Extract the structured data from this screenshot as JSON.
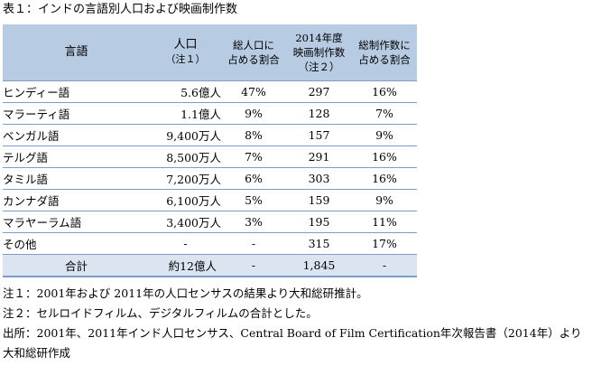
{
  "title": "表１：インドの言語別人口および映画制作数",
  "table": {
    "headers": {
      "language": "言語",
      "population_line1": "人口",
      "population_line2": "（注１）",
      "pop_share_line1": "総人口に",
      "pop_share_line2": "占める割合",
      "films_line1": "2014年度",
      "films_line2": "映画制作数",
      "films_line3": "（注２）",
      "film_share_line1": "総制作数に",
      "film_share_line2": "占める割合"
    },
    "rows": [
      {
        "language": "ヒンディー語",
        "population": "5.6億人",
        "pop_share": "47%",
        "films": "297",
        "film_share": "16%"
      },
      {
        "language": "マラーティ語",
        "population": "1.1億人",
        "pop_share": "9%",
        "films": "128",
        "film_share": "7%"
      },
      {
        "language": "ベンガル語",
        "population": "9,400万人",
        "pop_share": "8%",
        "films": "157",
        "film_share": "9%"
      },
      {
        "language": "テルグ語",
        "population": "8,500万人",
        "pop_share": "7%",
        "films": "291",
        "film_share": "16%"
      },
      {
        "language": "タミル語",
        "population": "7,200万人",
        "pop_share": "6%",
        "films": "303",
        "film_share": "16%"
      },
      {
        "language": "カンナダ語",
        "population": "6,100万人",
        "pop_share": "5%",
        "films": "159",
        "film_share": "9%"
      },
      {
        "language": "マラヤーラム語",
        "population": "3,400万人",
        "pop_share": "3%",
        "films": "195",
        "film_share": "11%"
      },
      {
        "language": "その他",
        "population": "-",
        "pop_share": "-",
        "films": "315",
        "film_share": "17%"
      }
    ],
    "total": {
      "language": "合計",
      "population": "約12億人",
      "pop_share": "-",
      "films": "1,845",
      "film_share": "-"
    }
  },
  "notes": {
    "note1": "注１：2001年および 2011年の人口センサスの結果より大和総研推計。",
    "note2": "注２：セルロイドフィルム、デジタルフィルムの合計とした。",
    "source": "出所：2001年、2011年インド人口センサス、Central Board of Film Certification年次報告書（2014年）より大和総研作成"
  },
  "colors": {
    "header_bg": "#b7cbe3",
    "total_bg": "#dbe5f1",
    "border": "#7f9cc4"
  }
}
